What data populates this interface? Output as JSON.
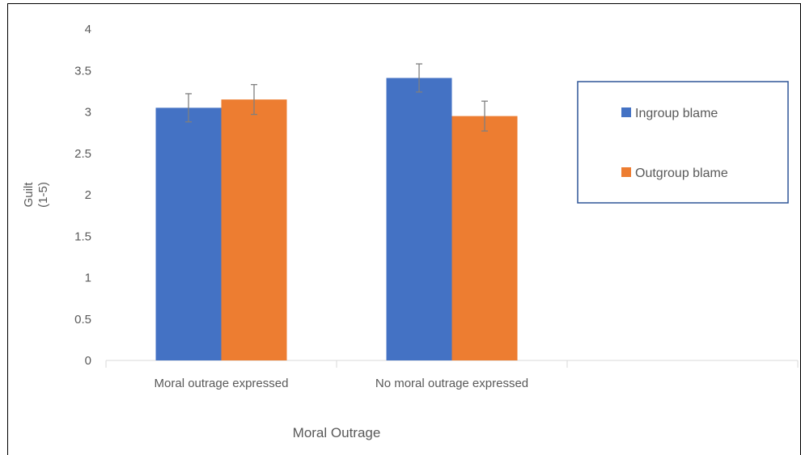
{
  "chart_data": {
    "type": "bar",
    "title": "",
    "xlabel": "Moral Outrage",
    "ylabel": "Guilt\n(1-5)",
    "ylabel_lines": [
      "Guilt",
      "(1-5)"
    ],
    "ylim": [
      0,
      4
    ],
    "yticks": [
      "0",
      "0.5",
      "1",
      "1.5",
      "2",
      "2.5",
      "3",
      "3.5",
      "4"
    ],
    "categories": [
      "Moral outrage expressed",
      "No moral outrage expressed",
      ""
    ],
    "series": [
      {
        "name": "Ingroup blame",
        "color": "#4472C4",
        "values": [
          3.05,
          3.41,
          null
        ],
        "error": [
          0.17,
          0.17,
          null
        ]
      },
      {
        "name": "Outgroup blame",
        "color": "#ED7D31",
        "values": [
          3.15,
          2.95,
          null
        ],
        "error": [
          0.18,
          0.18,
          null
        ]
      }
    ],
    "grid": false,
    "legend_position": "right"
  }
}
